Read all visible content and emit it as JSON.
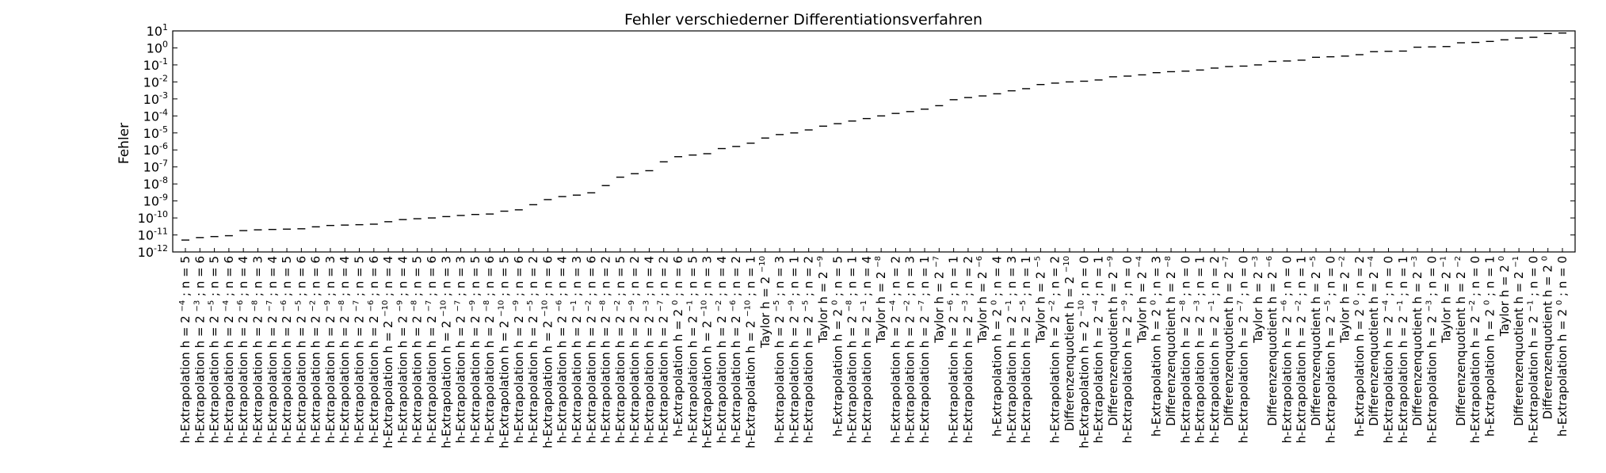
{
  "chart_data": {
    "type": "scatter",
    "title": "Fehler verschiederner Differentiationsverfahren",
    "ylabel": "Fehler",
    "xlabel": "",
    "yscale": "log",
    "ylim": [
      1e-12,
      10
    ],
    "ytick_labels": [
      {
        "value": 1e-12,
        "base": "10",
        "exp": "-12"
      },
      {
        "value": 1e-11,
        "base": "10",
        "exp": "-11"
      },
      {
        "value": 1e-10,
        "base": "10",
        "exp": "-10"
      },
      {
        "value": 1e-09,
        "base": "10",
        "exp": "-9"
      },
      {
        "value": 1e-08,
        "base": "10",
        "exp": "-8"
      },
      {
        "value": 1e-07,
        "base": "10",
        "exp": "-7"
      },
      {
        "value": 1e-06,
        "base": "10",
        "exp": "-6"
      },
      {
        "value": 1e-05,
        "base": "10",
        "exp": "-5"
      },
      {
        "value": 0.0001,
        "base": "10",
        "exp": "-4"
      },
      {
        "value": 0.001,
        "base": "10",
        "exp": "-3"
      },
      {
        "value": 0.01,
        "base": "10",
        "exp": "-2"
      },
      {
        "value": 0.1,
        "base": "10",
        "exp": "-1"
      },
      {
        "value": 1,
        "base": "10",
        "exp": "0"
      },
      {
        "value": 10,
        "base": "10",
        "exp": "1"
      }
    ],
    "grid": false,
    "legend": "none",
    "marker": "horizontal dash",
    "points": [
      {
        "label": "h-Extrapolation h = 2^-4 ; n = 5",
        "y": 5e-12
      },
      {
        "label": "h-Extrapolation h = 2^-3 ; n = 6",
        "y": 7e-12
      },
      {
        "label": "h-Extrapolation h = 2^-5 ; n = 5",
        "y": 8e-12
      },
      {
        "label": "h-Extrapolation h = 2^-4 ; n = 6",
        "y": 9e-12
      },
      {
        "label": "h-Extrapolation h = 2^-6 ; n = 4",
        "y": 1.8e-11
      },
      {
        "label": "h-Extrapolation h = 2^-8 ; n = 3",
        "y": 2e-11
      },
      {
        "label": "h-Extrapolation h = 2^-7 ; n = 4",
        "y": 2.1e-11
      },
      {
        "label": "h-Extrapolation h = 2^-6 ; n = 5",
        "y": 2.2e-11
      },
      {
        "label": "h-Extrapolation h = 2^-5 ; n = 6",
        "y": 2.3e-11
      },
      {
        "label": "h-Extrapolation h = 2^-2 ; n = 6",
        "y": 3e-11
      },
      {
        "label": "h-Extrapolation h = 2^-9 ; n = 3",
        "y": 3.6e-11
      },
      {
        "label": "h-Extrapolation h = 2^-8 ; n = 4",
        "y": 3.8e-11
      },
      {
        "label": "h-Extrapolation h = 2^-7 ; n = 5",
        "y": 4e-11
      },
      {
        "label": "h-Extrapolation h = 2^-6 ; n = 6",
        "y": 4.3e-11
      },
      {
        "label": "h-Extrapolation h = 2^-10 ; n = 4",
        "y": 6e-11
      },
      {
        "label": "h-Extrapolation h = 2^-9 ; n = 4",
        "y": 8e-11
      },
      {
        "label": "h-Extrapolation h = 2^-8 ; n = 5",
        "y": 9e-11
      },
      {
        "label": "h-Extrapolation h = 2^-7 ; n = 6",
        "y": 1e-10
      },
      {
        "label": "h-Extrapolation h = 2^-10 ; n = 3",
        "y": 1.2e-10
      },
      {
        "label": "h-Extrapolation h = 2^-7 ; n = 3",
        "y": 1.4e-10
      },
      {
        "label": "h-Extrapolation h = 2^-9 ; n = 5",
        "y": 1.6e-10
      },
      {
        "label": "h-Extrapolation h = 2^-8 ; n = 6",
        "y": 1.7e-10
      },
      {
        "label": "h-Extrapolation h = 2^-10 ; n = 5",
        "y": 2.5e-10
      },
      {
        "label": "h-Extrapolation h = 2^-9 ; n = 6",
        "y": 3e-10
      },
      {
        "label": "h-Extrapolation h = 2^-5 ; n = 2",
        "y": 6e-10
      },
      {
        "label": "h-Extrapolation h = 2^-10 ; n = 6",
        "y": 1.2e-09
      },
      {
        "label": "h-Extrapolation h = 2^-6 ; n = 4",
        "y": 1.8e-09
      },
      {
        "label": "h-Extrapolation h = 2^-1 ; n = 3",
        "y": 2.2e-09
      },
      {
        "label": "h-Extrapolation h = 2^-2 ; n = 6",
        "y": 3e-09
      },
      {
        "label": "h-Extrapolation h = 2^-8 ; n = 2",
        "y": 8e-09
      },
      {
        "label": "h-Extrapolation h = 2^-2 ; n = 5",
        "y": 2.5e-08
      },
      {
        "label": "h-Extrapolation h = 2^-9 ; n = 2",
        "y": 4e-08
      },
      {
        "label": "h-Extrapolation h = 2^-3 ; n = 4",
        "y": 6e-08
      },
      {
        "label": "h-Extrapolation h = 2^-7 ; n = 2",
        "y": 2e-07
      },
      {
        "label": "h-Extrapolation h = 2^0 ; n = 6",
        "y": 4e-07
      },
      {
        "label": "h-Extrapolation h = 2^-1 ; n = 5",
        "y": 5e-07
      },
      {
        "label": "h-Extrapolation h = 2^-10 ; n = 3",
        "y": 6e-07
      },
      {
        "label": "h-Extrapolation h = 2^-2 ; n = 4",
        "y": 1.2e-06
      },
      {
        "label": "h-Extrapolation h = 2^-6 ; n = 2",
        "y": 1.6e-06
      },
      {
        "label": "h-Extrapolation h = 2^-10 ; n = 1",
        "y": 2.5e-06
      },
      {
        "label": "Taylor h = 2^-10",
        "y": 5e-06
      },
      {
        "label": "h-Extrapolation h = 2^-5 ; n = 3",
        "y": 8e-06
      },
      {
        "label": "h-Extrapolation h = 2^-9 ; n = 1",
        "y": 1e-05
      },
      {
        "label": "h-Extrapolation h = 2^-5 ; n = 2",
        "y": 1.5e-05
      },
      {
        "label": "Taylor h = 2^-9",
        "y": 2.5e-05
      },
      {
        "label": "h-Extrapolation h = 2^0 ; n = 5",
        "y": 3.5e-05
      },
      {
        "label": "h-Extrapolation h = 2^-8 ; n = 1",
        "y": 5e-05
      },
      {
        "label": "h-Extrapolation h = 2^-1 ; n = 4",
        "y": 7e-05
      },
      {
        "label": "Taylor h = 2^-8",
        "y": 0.0001
      },
      {
        "label": "h-Extrapolation h = 2^-4 ; n = 2",
        "y": 0.00014
      },
      {
        "label": "h-Extrapolation h = 2^-2 ; n = 3",
        "y": 0.00018
      },
      {
        "label": "h-Extrapolation h = 2^-7 ; n = 1",
        "y": 0.00025
      },
      {
        "label": "Taylor h = 2^-7",
        "y": 0.0004
      },
      {
        "label": "h-Extrapolation h = 2^-6 ; n = 1",
        "y": 0.0009
      },
      {
        "label": "h-Extrapolation h = 2^-3 ; n = 2",
        "y": 0.0012
      },
      {
        "label": "Taylor h = 2^-6",
        "y": 0.0015
      },
      {
        "label": "h-Extrapolation h = 2^0 ; n = 4",
        "y": 0.002
      },
      {
        "label": "h-Extrapolation h = 2^-1 ; n = 3",
        "y": 0.003
      },
      {
        "label": "h-Extrapolation h = 2^-5 ; n = 1",
        "y": 0.004
      },
      {
        "label": "Taylor h = 2^-5",
        "y": 0.007
      },
      {
        "label": "h-Extrapolation h = 2^-2 ; n = 2",
        "y": 0.0085
      },
      {
        "label": "Differenzenquotient h = 2^-10",
        "y": 0.01
      },
      {
        "label": "h-Extrapolation h = 2^-10 ; n = 0",
        "y": 0.011
      },
      {
        "label": "h-Extrapolation h = 2^-4 ; n = 1",
        "y": 0.013
      },
      {
        "label": "Differenzenquotient h = 2^-9",
        "y": 0.02
      },
      {
        "label": "h-Extrapolation h = 2^-9 ; n = 0",
        "y": 0.022
      },
      {
        "label": "Taylor h = 2^-4",
        "y": 0.026
      },
      {
        "label": "h-Extrapolation h = 2^0 ; n = 3",
        "y": 0.035
      },
      {
        "label": "Differenzenquotient h = 2^-8",
        "y": 0.04
      },
      {
        "label": "h-Extrapolation h = 2^-8 ; n = 0",
        "y": 0.043
      },
      {
        "label": "h-Extrapolation h = 2^-3 ; n = 1",
        "y": 0.05
      },
      {
        "label": "h-Extrapolation h = 2^-1 ; n = 2",
        "y": 0.065
      },
      {
        "label": "Differenzenquotient h = 2^-7",
        "y": 0.08
      },
      {
        "label": "h-Extrapolation h = 2^-7 ; n = 0",
        "y": 0.085
      },
      {
        "label": "Taylor h = 2^-3",
        "y": 0.1
      },
      {
        "label": "Differenzenquotient h = 2^-6",
        "y": 0.16
      },
      {
        "label": "h-Extrapolation h = 2^-6 ; n = 0",
        "y": 0.17
      },
      {
        "label": "h-Extrapolation h = 2^-2 ; n = 1",
        "y": 0.19
      },
      {
        "label": "Differenzenquotient h = 2^-5",
        "y": 0.28
      },
      {
        "label": "h-Extrapolation h = 2^-5 ; n = 0",
        "y": 0.3
      },
      {
        "label": "Taylor h = 2^-2",
        "y": 0.33
      },
      {
        "label": "h-Extrapolation h = 2^0 ; n = 2",
        "y": 0.4
      },
      {
        "label": "Differenzenquotient h = 2^-4",
        "y": 0.6
      },
      {
        "label": "h-Extrapolation h = 2^-4 ; n = 0",
        "y": 0.63
      },
      {
        "label": "h-Extrapolation h = 2^-1 ; n = 1",
        "y": 0.65
      },
      {
        "label": "Differenzenquotient h = 2^-3",
        "y": 1.1
      },
      {
        "label": "h-Extrapolation h = 2^-3 ; n = 0",
        "y": 1.15
      },
      {
        "label": "Taylor h = 2^-1",
        "y": 1.2
      },
      {
        "label": "Differenzenquotient h = 2^-2",
        "y": 2
      },
      {
        "label": "h-Extrapolation h = 2^-2 ; n = 0",
        "y": 2.1
      },
      {
        "label": "h-Extrapolation h = 2^0 ; n = 1",
        "y": 2.4
      },
      {
        "label": "Taylor h = 2^0",
        "y": 3
      },
      {
        "label": "Differenzenquotient h = 2^-1",
        "y": 3.8
      },
      {
        "label": "h-Extrapolation h = 2^-1 ; n = 0",
        "y": 4.2
      },
      {
        "label": "Differenzenquotient h = 2^0",
        "y": 7
      },
      {
        "label": "h-Extrapolation h = 2^0 ; n = 0",
        "y": 7.5
      }
    ]
  }
}
